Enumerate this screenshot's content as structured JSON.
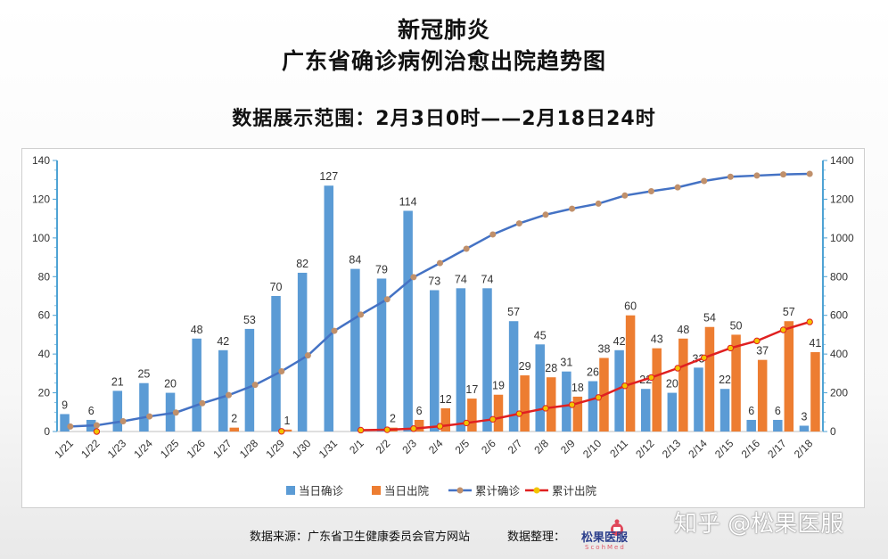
{
  "titles": {
    "line1": "新冠肺炎",
    "line2": "广东省确诊病例治愈出院趋势图",
    "line3": "数据展示范围：2月3日0时——2月18日24时"
  },
  "footer": {
    "source": "数据来源：广东省卫生健康委员会官方网站",
    "organizer": "数据整理：",
    "logo_text": "松果医服",
    "logo_sub": "ScohMed",
    "watermark": "知乎 @松果医服"
  },
  "colors": {
    "confirmed_bar": "#5b9bd5",
    "discharged_bar": "#ed7d31",
    "cumulative_confirmed_line": "#4472c4",
    "cumulative_confirmed_marker": "#c0906b",
    "cumulative_discharged_line": "#e02020",
    "cumulative_discharged_marker": "#f2c500",
    "axis_right": "#4fa3d4"
  },
  "chart_data": {
    "type": "bar",
    "categories": [
      "1/21",
      "1/22",
      "1/23",
      "1/24",
      "1/25",
      "1/26",
      "1/27",
      "1/28",
      "1/29",
      "1/30",
      "1/31",
      "2/1",
      "2/2",
      "2/3",
      "2/4",
      "2/5",
      "2/6",
      "2/7",
      "2/8",
      "2/9",
      "2/10",
      "2/11",
      "2/12",
      "2/13",
      "2/14",
      "2/15",
      "2/16",
      "2/17",
      "2/18"
    ],
    "left_axis": {
      "ylim": [
        0,
        140
      ],
      "ticks": [
        0,
        20,
        40,
        60,
        80,
        100,
        120,
        140
      ]
    },
    "right_axis": {
      "ylim": [
        0,
        1400
      ],
      "ticks": [
        0,
        200,
        400,
        600,
        800,
        1000,
        1200,
        1400
      ]
    },
    "series": [
      {
        "name": "当日确诊",
        "kind": "bar",
        "axis": "left",
        "values": [
          9,
          6,
          21,
          25,
          20,
          48,
          42,
          53,
          70,
          82,
          127,
          84,
          79,
          114,
          73,
          74,
          74,
          57,
          45,
          31,
          26,
          42,
          22,
          20,
          33,
          22,
          6,
          6,
          3
        ]
      },
      {
        "name": "当日出院",
        "kind": "bar",
        "axis": "left",
        "values": [
          null,
          null,
          null,
          null,
          null,
          null,
          2,
          null,
          1,
          null,
          null,
          null,
          2,
          6,
          12,
          17,
          19,
          29,
          28,
          18,
          38,
          60,
          43,
          48,
          54,
          50,
          37,
          57,
          41
        ]
      },
      {
        "name": "累计确诊",
        "kind": "line",
        "axis": "right",
        "values": [
          26,
          32,
          53,
          78,
          98,
          146,
          188,
          241,
          311,
          393,
          520,
          604,
          683,
          797,
          870,
          944,
          1018,
          1075,
          1120,
          1151,
          1177,
          1219,
          1241,
          1261,
          1294,
          1316,
          1322,
          1328,
          1331
        ]
      },
      {
        "name": "累计出院",
        "kind": "line",
        "axis": "right",
        "values": [
          null,
          0,
          null,
          null,
          null,
          null,
          null,
          null,
          1,
          null,
          null,
          7,
          9,
          15,
          27,
          44,
          63,
          92,
          120,
          138,
          176,
          236,
          279,
          327,
          381,
          431,
          468,
          525,
          566
        ]
      }
    ],
    "legend_position": "bottom",
    "grid": false
  }
}
